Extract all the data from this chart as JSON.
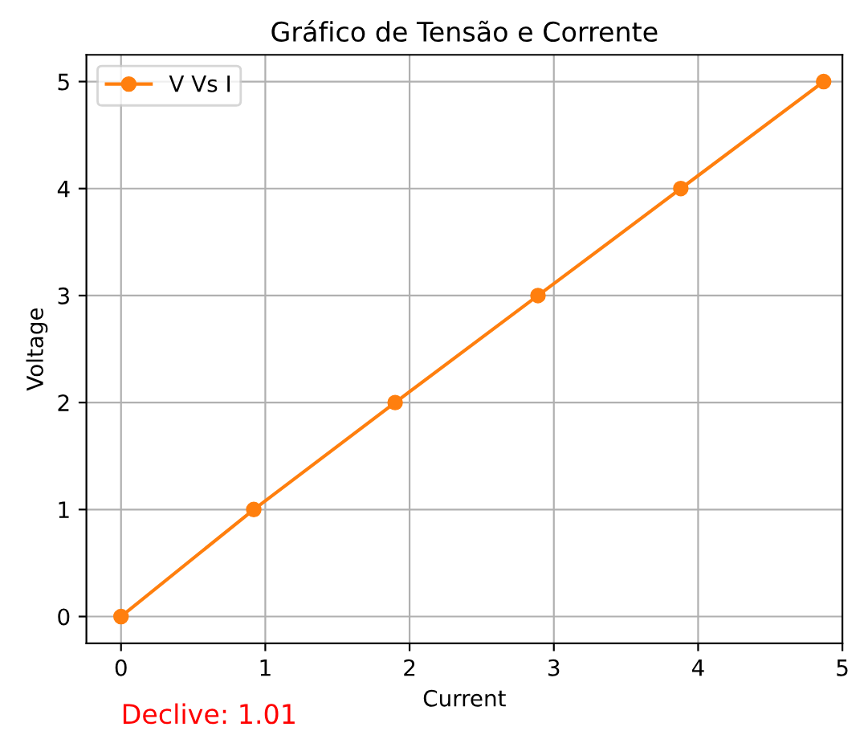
{
  "chart_data": {
    "type": "line",
    "title": "Gráfico de Tensão e Corrente",
    "xlabel": "Current",
    "ylabel": "Voltage",
    "x": [
      0,
      0.92,
      1.9,
      2.89,
      3.88,
      4.87
    ],
    "series": [
      {
        "name": "V Vs I",
        "color": "#ff7f0e",
        "values": [
          0,
          1,
          2,
          3,
          4,
          5
        ]
      }
    ],
    "xlim": [
      -0.24,
      5.0
    ],
    "ylim": [
      -0.25,
      5.25
    ],
    "xticks": [
      0,
      1,
      2,
      3,
      4,
      5
    ],
    "yticks": [
      0,
      1,
      2,
      3,
      4,
      5
    ],
    "grid": true,
    "legend": "top left",
    "marker": "circle",
    "line_style": "solid",
    "annotations": [
      "Declive: 1.01"
    ]
  }
}
